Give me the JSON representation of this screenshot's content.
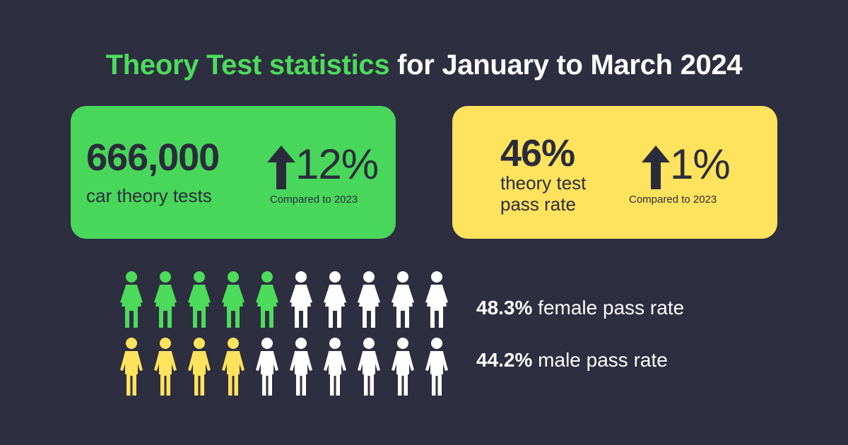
{
  "title": {
    "highlight": "Theory Test statistics",
    "rest": " for January to March 2024"
  },
  "cards": {
    "tests": {
      "number": "666,000",
      "label": "car theory tests",
      "change": "12%",
      "change_note": "Compared to 2023",
      "direction": "up-arrow-icon"
    },
    "pass_rate": {
      "number": "46%",
      "label_line1": "theory test",
      "label_line2": "pass rate",
      "change": "1%",
      "change_note": "Compared to 2023",
      "direction": "up-arrow-icon"
    }
  },
  "pictogram": {
    "female": {
      "value": "48.3%",
      "text": " female pass rate",
      "filled_of_10": 5,
      "color": "#4ddb5c"
    },
    "male": {
      "value": "44.2%",
      "text": " male pass rate",
      "filled_of_10": 4,
      "color": "#ffe25d"
    },
    "empty_color": "#ffffff"
  },
  "colors": {
    "background": "#2d2e3f",
    "green": "#48d75b",
    "yellow": "#ffe25d",
    "dark_text": "#2b2c3b"
  }
}
